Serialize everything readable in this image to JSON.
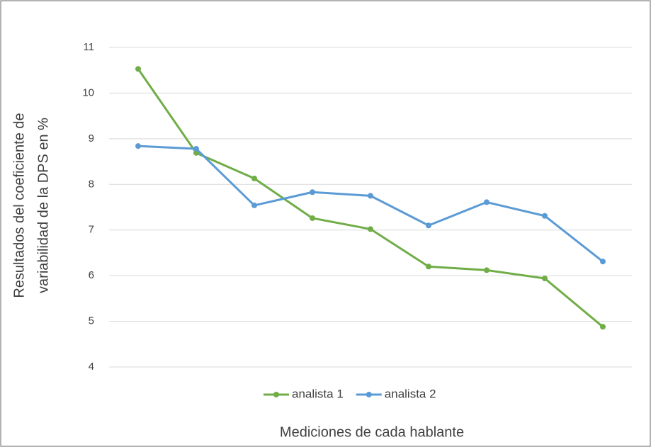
{
  "chart_data": {
    "type": "line",
    "ylabel": [
      "Resultados del coeficiente de",
      "variabilidad de la DPS en %"
    ],
    "xlabel": "Mediciones de cada hablante",
    "categories": [
      null,
      null,
      null,
      null,
      null,
      null,
      null,
      null,
      null
    ],
    "series": [
      {
        "name": "analista 1",
        "color": "#70ad47",
        "values": [
          10.53,
          8.69,
          8.13,
          7.26,
          7.02,
          6.2,
          6.12,
          5.94,
          4.88
        ]
      },
      {
        "name": "analista 2",
        "color": "#5b9bd5",
        "values": [
          8.84,
          8.78,
          7.54,
          7.83,
          7.75,
          7.1,
          7.61,
          7.31,
          6.31
        ]
      }
    ],
    "ylim": [
      4,
      11
    ],
    "yticks": [
      4,
      5,
      6,
      7,
      8,
      9,
      10,
      11
    ],
    "grid": true,
    "legend": "bottom"
  }
}
